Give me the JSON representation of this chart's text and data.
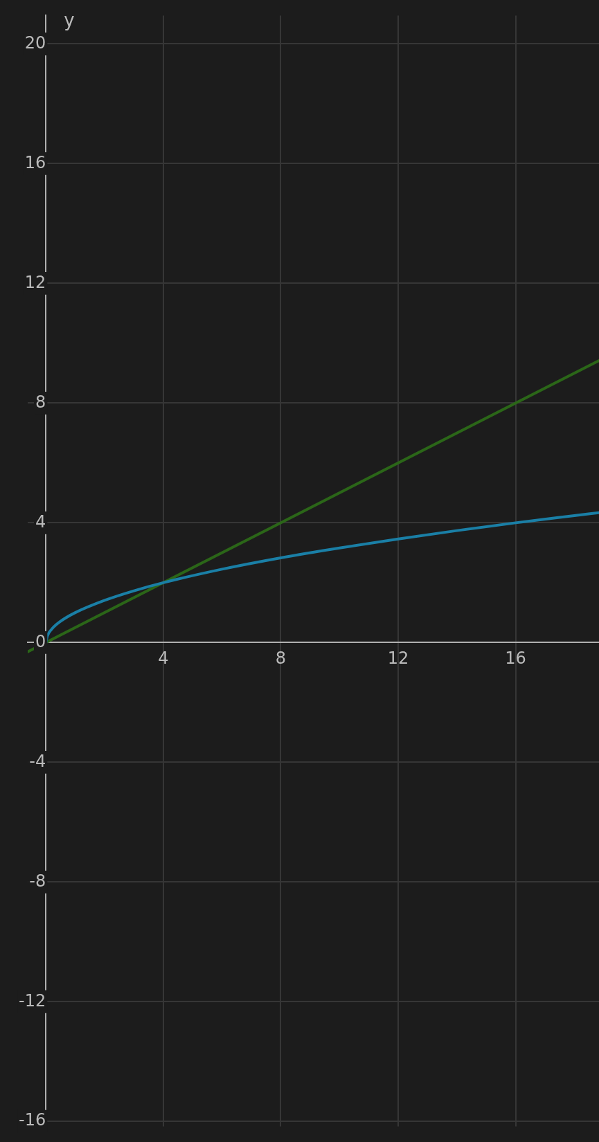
{
  "chart_data": {
    "type": "line",
    "ylabel": "y",
    "xlim": [
      -0.62,
      18.84
    ],
    "ylim": [
      -16.17,
      20.95
    ],
    "xticks": [
      4,
      8,
      12,
      16
    ],
    "yticks": [
      -16,
      -12,
      -8,
      -4,
      0,
      4,
      8,
      12,
      16,
      20
    ],
    "grid": true,
    "legend": false,
    "marker": "none",
    "line_style": "solid",
    "series": [
      {
        "color": "#1a7fa6",
        "x": [
          0,
          0.05,
          0.2,
          0.5,
          1,
          2,
          3,
          4,
          6,
          8,
          10,
          12,
          14,
          16,
          18,
          18.84
        ],
        "values": [
          0,
          0.22,
          0.45,
          0.71,
          1,
          1.41,
          1.73,
          2,
          2.45,
          2.83,
          3.16,
          3.46,
          3.74,
          4,
          4.24,
          4.34
        ]
      },
      {
        "color": "#2b6618",
        "x": [
          -0.62,
          18.84
        ],
        "values": [
          -0.31,
          9.42
        ]
      }
    ]
  }
}
